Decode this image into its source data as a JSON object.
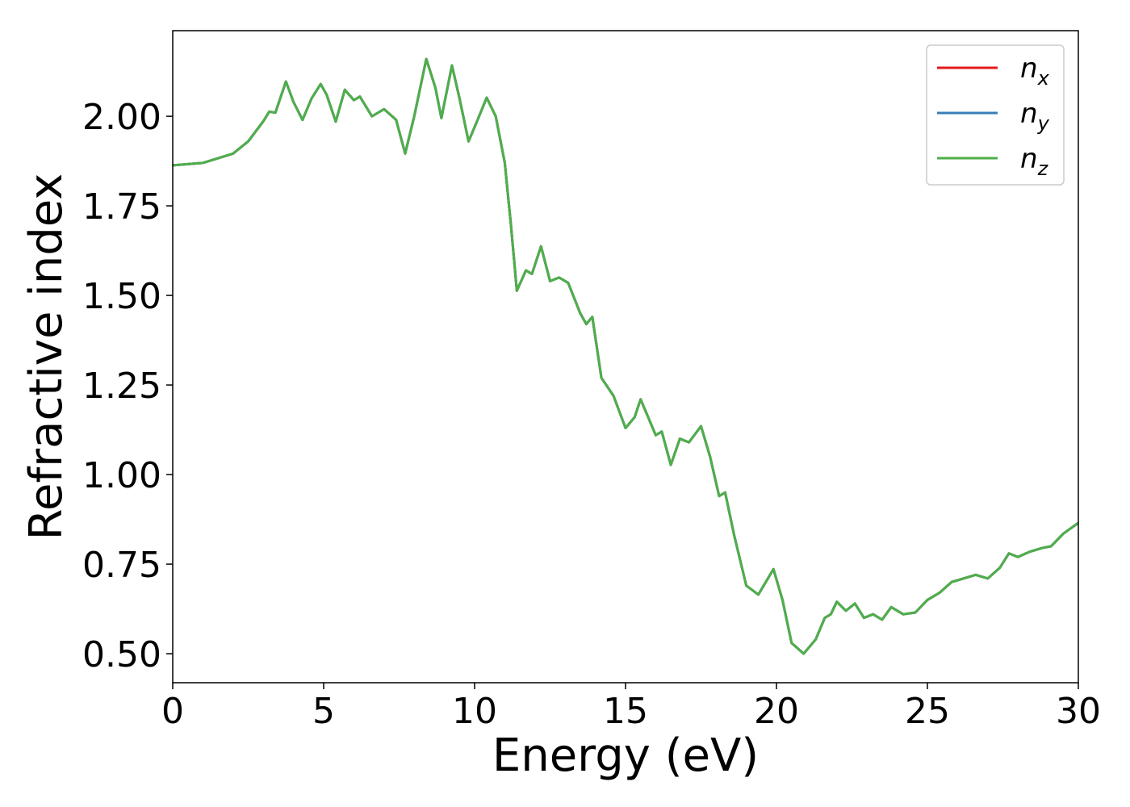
{
  "chart_data": {
    "type": "line",
    "xlabel": "Energy (eV)",
    "ylabel": "Refractive index",
    "x": [
      0,
      1,
      2,
      2.5,
      3,
      3.2,
      3.4,
      3.75,
      4.0,
      4.3,
      4.6,
      4.9,
      5.1,
      5.4,
      5.7,
      6.0,
      6.2,
      6.6,
      7.0,
      7.4,
      7.7,
      8.0,
      8.4,
      8.7,
      8.9,
      9.25,
      9.5,
      9.8,
      10.1,
      10.4,
      10.7,
      11.0,
      11.2,
      11.4,
      11.7,
      11.9,
      12.2,
      12.5,
      12.8,
      13.1,
      13.5,
      13.7,
      13.9,
      14.2,
      14.6,
      15.0,
      15.3,
      15.5,
      15.8,
      16.0,
      16.2,
      16.5,
      16.8,
      17.1,
      17.5,
      17.8,
      18.1,
      18.3,
      18.6,
      19.0,
      19.4,
      19.9,
      20.2,
      20.5,
      20.9,
      21.3,
      21.6,
      21.8,
      22.0,
      22.3,
      22.6,
      22.9,
      23.2,
      23.5,
      23.8,
      24.2,
      24.6,
      25.0,
      25.4,
      25.8,
      26.2,
      26.6,
      27.0,
      27.4,
      27.7,
      28.0,
      28.4,
      28.8,
      29.1,
      29.5,
      30.0
    ],
    "series": [
      {
        "name": "nx",
        "color": "#e41a1c",
        "values": [
          1.863,
          1.87,
          1.896,
          1.93,
          1.986,
          2.013,
          2.01,
          2.097,
          2.04,
          1.99,
          2.05,
          2.09,
          2.06,
          1.985,
          2.074,
          2.045,
          2.055,
          2.0,
          2.02,
          1.99,
          1.896,
          2.0,
          2.16,
          2.08,
          1.995,
          2.142,
          2.05,
          1.93,
          1.99,
          2.052,
          2.0,
          1.87,
          1.7,
          1.513,
          1.57,
          1.56,
          1.637,
          1.54,
          1.55,
          1.535,
          1.45,
          1.42,
          1.44,
          1.27,
          1.22,
          1.13,
          1.16,
          1.21,
          1.15,
          1.11,
          1.12,
          1.027,
          1.1,
          1.09,
          1.135,
          1.05,
          0.94,
          0.95,
          0.83,
          0.69,
          0.665,
          0.736,
          0.65,
          0.53,
          0.5,
          0.54,
          0.6,
          0.61,
          0.645,
          0.62,
          0.64,
          0.6,
          0.61,
          0.595,
          0.63,
          0.61,
          0.615,
          0.65,
          0.67,
          0.7,
          0.71,
          0.72,
          0.71,
          0.74,
          0.78,
          0.77,
          0.785,
          0.795,
          0.8,
          0.835,
          0.865
        ]
      },
      {
        "name": "ny",
        "color": "#377eb8",
        "values": [
          1.863,
          1.87,
          1.896,
          1.93,
          1.986,
          2.013,
          2.01,
          2.097,
          2.04,
          1.99,
          2.05,
          2.09,
          2.06,
          1.985,
          2.074,
          2.045,
          2.055,
          2.0,
          2.02,
          1.99,
          1.896,
          2.0,
          2.16,
          2.08,
          1.995,
          2.142,
          2.05,
          1.93,
          1.99,
          2.052,
          2.0,
          1.87,
          1.7,
          1.513,
          1.57,
          1.56,
          1.637,
          1.54,
          1.55,
          1.535,
          1.45,
          1.42,
          1.44,
          1.27,
          1.22,
          1.13,
          1.16,
          1.21,
          1.15,
          1.11,
          1.12,
          1.027,
          1.1,
          1.09,
          1.135,
          1.05,
          0.94,
          0.95,
          0.83,
          0.69,
          0.665,
          0.736,
          0.65,
          0.53,
          0.5,
          0.54,
          0.6,
          0.61,
          0.645,
          0.62,
          0.64,
          0.6,
          0.61,
          0.595,
          0.63,
          0.61,
          0.615,
          0.65,
          0.67,
          0.7,
          0.71,
          0.72,
          0.71,
          0.74,
          0.78,
          0.77,
          0.785,
          0.795,
          0.8,
          0.835,
          0.865
        ]
      },
      {
        "name": "nz",
        "color": "#4daf4a",
        "values": [
          1.863,
          1.87,
          1.896,
          1.93,
          1.986,
          2.013,
          2.01,
          2.097,
          2.04,
          1.99,
          2.05,
          2.09,
          2.06,
          1.985,
          2.074,
          2.045,
          2.055,
          2.0,
          2.02,
          1.99,
          1.896,
          2.0,
          2.16,
          2.08,
          1.995,
          2.142,
          2.05,
          1.93,
          1.99,
          2.052,
          2.0,
          1.87,
          1.7,
          1.513,
          1.57,
          1.56,
          1.637,
          1.54,
          1.55,
          1.535,
          1.45,
          1.42,
          1.44,
          1.27,
          1.22,
          1.13,
          1.16,
          1.21,
          1.15,
          1.11,
          1.12,
          1.027,
          1.1,
          1.09,
          1.135,
          1.05,
          0.94,
          0.95,
          0.83,
          0.69,
          0.665,
          0.736,
          0.65,
          0.53,
          0.5,
          0.54,
          0.6,
          0.61,
          0.645,
          0.62,
          0.64,
          0.6,
          0.61,
          0.595,
          0.63,
          0.61,
          0.615,
          0.65,
          0.67,
          0.7,
          0.71,
          0.72,
          0.71,
          0.74,
          0.78,
          0.77,
          0.785,
          0.795,
          0.8,
          0.835,
          0.865
        ]
      }
    ],
    "xlim": [
      0,
      30
    ],
    "xticks": [
      0,
      5,
      10,
      15,
      20,
      25,
      30
    ],
    "ylim": [
      0.419,
      2.239
    ],
    "yticks": [
      {
        "value": 0.5,
        "label": "0.50"
      },
      {
        "value": 0.75,
        "label": "0.75"
      },
      {
        "value": 1.0,
        "label": "1.00"
      },
      {
        "value": 1.25,
        "label": "1.25"
      },
      {
        "value": 1.5,
        "label": "1.50"
      },
      {
        "value": 1.75,
        "label": "1.75"
      },
      {
        "value": 2.0,
        "label": "2.00"
      }
    ],
    "grid": false,
    "legend": "upper right"
  }
}
